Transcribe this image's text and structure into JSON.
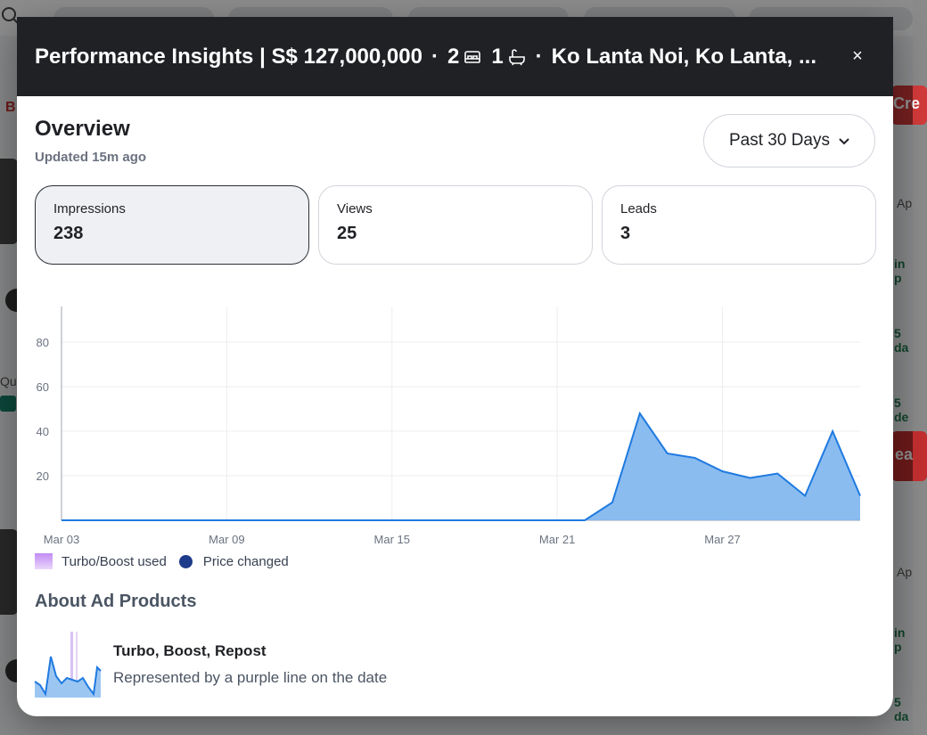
{
  "background": {
    "left_text": "B",
    "left_small_text": "Qua",
    "right_button_1": "Cre",
    "right_button_2": "ea",
    "right_texts": [
      "Ap",
      "in p",
      "5 da",
      "5 de",
      "Ap",
      "in p",
      "5 da"
    ]
  },
  "modal": {
    "title_prefix": "Performance Insights | S$ 127,000,000",
    "bedrooms": "2",
    "bathrooms": "1",
    "location": "Ko Lanta Noi, Ko Lanta, ...",
    "bed_icon": "bed-icon",
    "bath_icon": "bath-icon",
    "close_label": "×"
  },
  "overview": {
    "title": "Overview",
    "updated": "Updated 15m ago",
    "range_label": "Past 30 Days"
  },
  "stats": [
    {
      "label": "Impressions",
      "value": "238"
    },
    {
      "label": "Views",
      "value": "25"
    },
    {
      "label": "Leads",
      "value": "3"
    }
  ],
  "chart_data": {
    "type": "area",
    "x": [
      "Mar 03",
      "Mar 04",
      "Mar 05",
      "Mar 06",
      "Mar 07",
      "Mar 08",
      "Mar 09",
      "Mar 10",
      "Mar 11",
      "Mar 12",
      "Mar 13",
      "Mar 14",
      "Mar 15",
      "Mar 16",
      "Mar 17",
      "Mar 18",
      "Mar 19",
      "Mar 20",
      "Mar 21",
      "Mar 22",
      "Mar 23",
      "Mar 24",
      "Mar 25",
      "Mar 26",
      "Mar 27",
      "Mar 28",
      "Mar 29",
      "Mar 30",
      "Mar 31",
      "Apr 01"
    ],
    "x_tick_labels": [
      "Mar 03",
      "Mar 09",
      "Mar 15",
      "Mar 21",
      "Mar 27"
    ],
    "series": [
      {
        "values": [
          0,
          0,
          0,
          0,
          0,
          0,
          0,
          0,
          0,
          0,
          0,
          0,
          0,
          0,
          0,
          0,
          0,
          0,
          0,
          0,
          8,
          48,
          30,
          28,
          22,
          19,
          21,
          11,
          40,
          11
        ]
      }
    ],
    "y_ticks": [
      20,
      40,
      60,
      80
    ],
    "ylim": [
      0,
      96
    ],
    "grid": true,
    "colors": {
      "line": "#1f7ae0",
      "fill": "#7db5ee"
    }
  },
  "legend": {
    "turbo_label": "Turbo/Boost used",
    "price_label": "Price changed",
    "turbo_color": "#c28bf3",
    "price_color": "#1e3a8a"
  },
  "about": {
    "title": "About Ad Products",
    "product_name": "Turbo, Boost, Repost",
    "product_desc": "Represented by a purple line on the date"
  }
}
